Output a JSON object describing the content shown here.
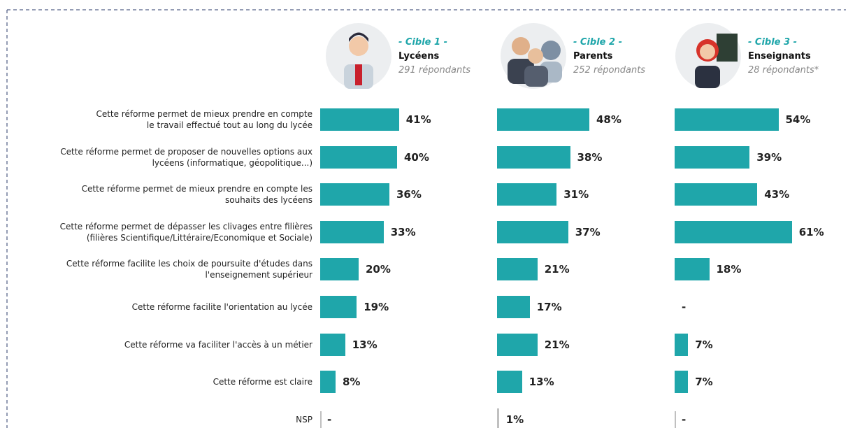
{
  "chart_data": {
    "type": "bar",
    "categories": [
      "Cette réforme permet de mieux prendre en compte\nle travail effectué tout au long du lycée",
      "Cette réforme permet de proposer de nouvelles options aux\nlycéens (informatique, géopolitique...)",
      "Cette réforme permet de mieux prendre en compte les\nsouhaits des lycéens",
      "Cette réforme permet de dépasser les clivages entre filières\n(filières Scientifique/Littéraire/Economique et Sociale)",
      "Cette réforme facilite les choix de poursuite d'études dans\nl'enseignement supérieur",
      "Cette réforme facilite l'orientation au lycée",
      "Cette réforme va faciliter l'accès à un métier",
      "Cette réforme est claire",
      "NSP"
    ],
    "nsp_color": "#c0c0c0",
    "series": [
      {
        "label": "- Cible 1 -",
        "name": "Lycéens",
        "respondents": "291 répondants",
        "color": "#1fa6aa",
        "values": [
          41,
          40,
          36,
          33,
          20,
          19,
          13,
          8,
          null
        ],
        "value_labels": [
          "41%",
          "40%",
          "36%",
          "33%",
          "20%",
          "19%",
          "13%",
          "8%",
          "-"
        ]
      },
      {
        "label": "- Cible 2 -",
        "name": "Parents",
        "respondents": "252 répondants",
        "color": "#1fa6aa",
        "values": [
          48,
          38,
          31,
          37,
          21,
          17,
          21,
          13,
          1
        ],
        "value_labels": [
          "48%",
          "38%",
          "31%",
          "37%",
          "21%",
          "17%",
          "21%",
          "13%",
          "1%"
        ]
      },
      {
        "label": "- Cible 3 -",
        "name": "Enseignants",
        "respondents": "28 répondants*",
        "color": "#1fa6aa",
        "values": [
          54,
          39,
          43,
          61,
          18,
          null,
          7,
          7,
          null
        ],
        "value_labels": [
          "54%",
          "39%",
          "43%",
          "61%",
          "18%",
          "-",
          "7%",
          "7%",
          "-"
        ]
      }
    ]
  }
}
